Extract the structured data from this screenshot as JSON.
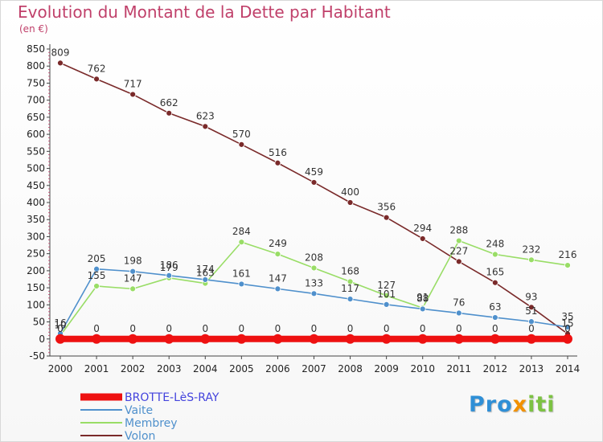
{
  "chart_data": {
    "type": "line",
    "title": "Evolution du Montant de la Dette par Habitant",
    "subtitle": "(en €)",
    "xlabel": "",
    "ylabel": "",
    "categories": [
      "2000",
      "2001",
      "2002",
      "2003",
      "2004",
      "2005",
      "2006",
      "2007",
      "2008",
      "2009",
      "2010",
      "2011",
      "2012",
      "2013",
      "2014"
    ],
    "ylim": [
      -50,
      850
    ],
    "yticks": [
      -50,
      0,
      50,
      100,
      150,
      200,
      250,
      300,
      350,
      400,
      450,
      500,
      550,
      600,
      650,
      700,
      750,
      800,
      850
    ],
    "grid": false,
    "legend": "bottom-left",
    "series": [
      {
        "name": "BROTTE-LèS-RAY",
        "color": "#ee1111",
        "values": [
          0,
          0,
          0,
          0,
          0,
          0,
          0,
          0,
          0,
          0,
          0,
          0,
          0,
          0,
          0
        ],
        "labels": [
          "0",
          "0",
          "0",
          "0",
          "0",
          "0",
          "0",
          "0",
          "0",
          "0",
          "0",
          "0",
          "0",
          "0",
          "0"
        ]
      },
      {
        "name": "Vaite",
        "color": "#4f90cc",
        "values": [
          16,
          205,
          198,
          186,
          174,
          161,
          147,
          133,
          117,
          101,
          88,
          76,
          63,
          51,
          35
        ],
        "labels": [
          "16",
          "205",
          "198",
          "186",
          "174",
          "161",
          "147",
          "133",
          "117",
          "101",
          "88",
          "76",
          "63",
          "51",
          "35"
        ]
      },
      {
        "name": "Membrey",
        "color": "#99dd66",
        "values": [
          10,
          155,
          147,
          179,
          163,
          284,
          249,
          208,
          168,
          127,
          91,
          288,
          248,
          232,
          216
        ],
        "labels": [
          "10",
          "155",
          "147",
          "179",
          "163",
          "284",
          "249",
          "208",
          "168",
          "127",
          "91",
          "288",
          "248",
          "232",
          "216"
        ]
      },
      {
        "name": "Volon",
        "color": "#7a2a2a",
        "values": [
          809,
          762,
          717,
          662,
          623,
          570,
          516,
          459,
          400,
          356,
          294,
          227,
          165,
          93,
          15
        ],
        "labels": [
          "809",
          "762",
          "717",
          "662",
          "623",
          "570",
          "516",
          "459",
          "400",
          "356",
          "294",
          "227",
          "165",
          "93",
          "15"
        ]
      }
    ]
  },
  "logo": {
    "part1": "Pro",
    "part2": "x",
    "part3": "iti"
  },
  "colors": {
    "logo_blue": "#2f8fd6",
    "logo_orange": "#f29100",
    "logo_green": "#7cc242"
  }
}
